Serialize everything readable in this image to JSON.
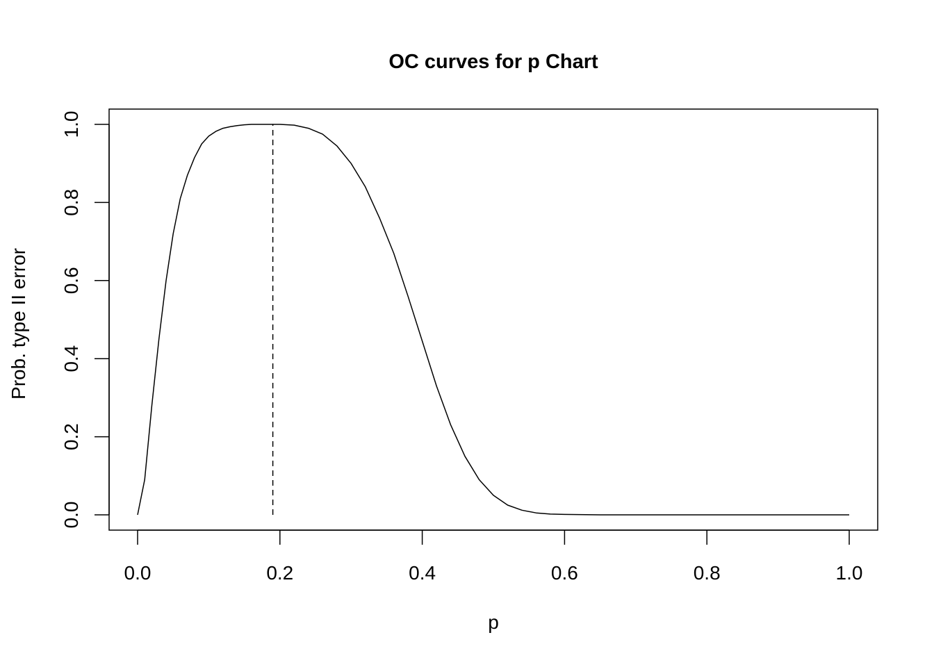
{
  "chart_data": {
    "type": "line",
    "title": "OC curves for p Chart",
    "xlabel": "p",
    "ylabel": "Prob. type II error",
    "xlim": [
      0,
      1
    ],
    "ylim": [
      0,
      1
    ],
    "x_ticks": [
      "0.0",
      "0.2",
      "0.4",
      "0.6",
      "0.8",
      "1.0"
    ],
    "y_ticks": [
      "0.0",
      "0.2",
      "0.4",
      "0.6",
      "0.8",
      "1.0"
    ],
    "grid": false,
    "series": [
      {
        "style": "solid",
        "x": [
          0.0,
          0.01,
          0.02,
          0.03,
          0.04,
          0.05,
          0.06,
          0.07,
          0.08,
          0.09,
          0.1,
          0.11,
          0.12,
          0.13,
          0.14,
          0.15,
          0.16,
          0.17,
          0.18,
          0.19,
          0.2,
          0.22,
          0.24,
          0.26,
          0.28,
          0.3,
          0.32,
          0.34,
          0.36,
          0.38,
          0.4,
          0.42,
          0.44,
          0.46,
          0.48,
          0.5,
          0.52,
          0.54,
          0.56,
          0.58,
          0.6,
          0.65,
          0.7,
          0.8,
          0.9,
          1.0
        ],
        "y": [
          0.0,
          0.09,
          0.28,
          0.45,
          0.6,
          0.72,
          0.81,
          0.87,
          0.915,
          0.95,
          0.97,
          0.982,
          0.99,
          0.994,
          0.997,
          0.999,
          1.0,
          1.0,
          1.0,
          1.0,
          1.0,
          0.998,
          0.99,
          0.975,
          0.945,
          0.9,
          0.84,
          0.76,
          0.67,
          0.56,
          0.445,
          0.33,
          0.23,
          0.15,
          0.09,
          0.05,
          0.025,
          0.012,
          0.005,
          0.002,
          0.001,
          0.0,
          0.0,
          0.0,
          0.0,
          0.0
        ]
      },
      {
        "style": "dashed",
        "x": [
          0.19,
          0.19
        ],
        "y": [
          0.0,
          1.0
        ]
      }
    ]
  }
}
